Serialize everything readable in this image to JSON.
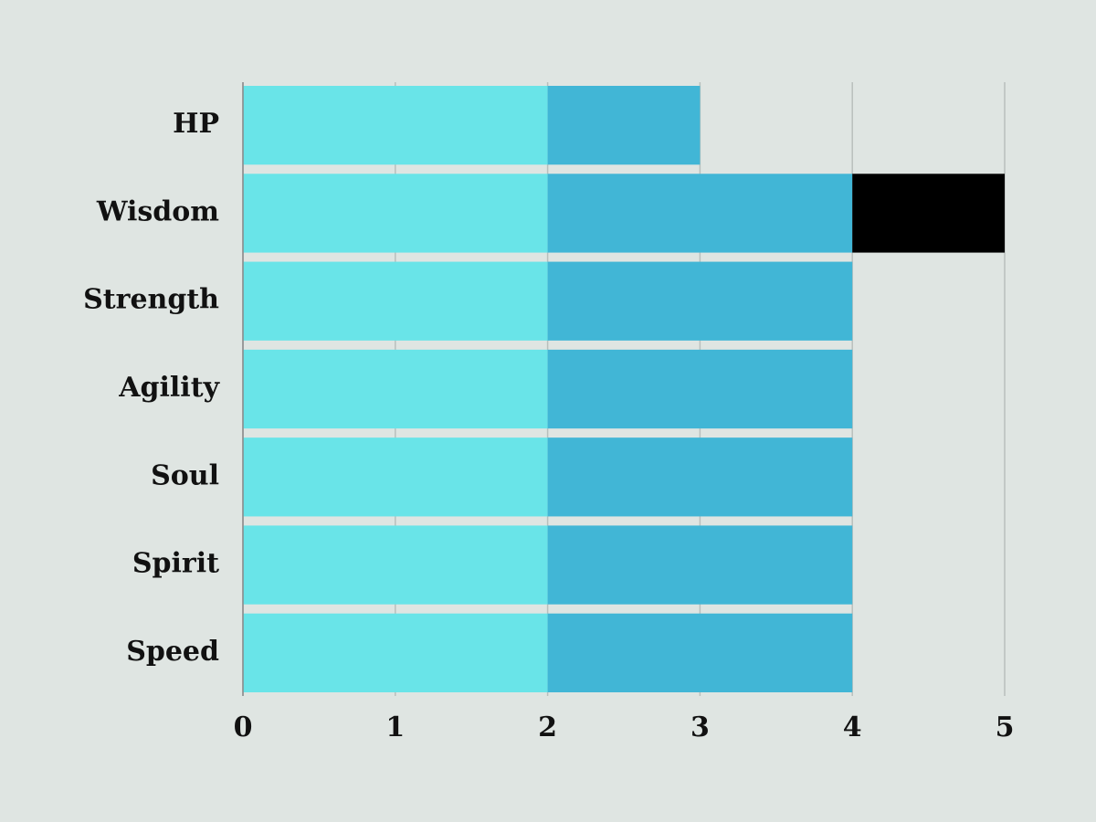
{
  "chart_data": {
    "type": "stacked-bar",
    "categories": [
      "HP",
      "Wisdom",
      "Strength",
      "Agility",
      "Soul",
      "Spirit",
      "Speed"
    ],
    "series": [
      {
        "color": "#69e4e8",
        "values": [
          2,
          2,
          2,
          2,
          2,
          2,
          2
        ]
      },
      {
        "color": "#41b6d6",
        "values": [
          1,
          2,
          2,
          2,
          2,
          2,
          2
        ]
      },
      {
        "color": "#000000",
        "values": [
          null,
          1,
          null,
          null,
          null,
          null,
          null
        ]
      }
    ],
    "xlim": [
      0,
      5
    ],
    "xticks": [
      0,
      1,
      2,
      3,
      4,
      5
    ],
    "grid": true
  }
}
